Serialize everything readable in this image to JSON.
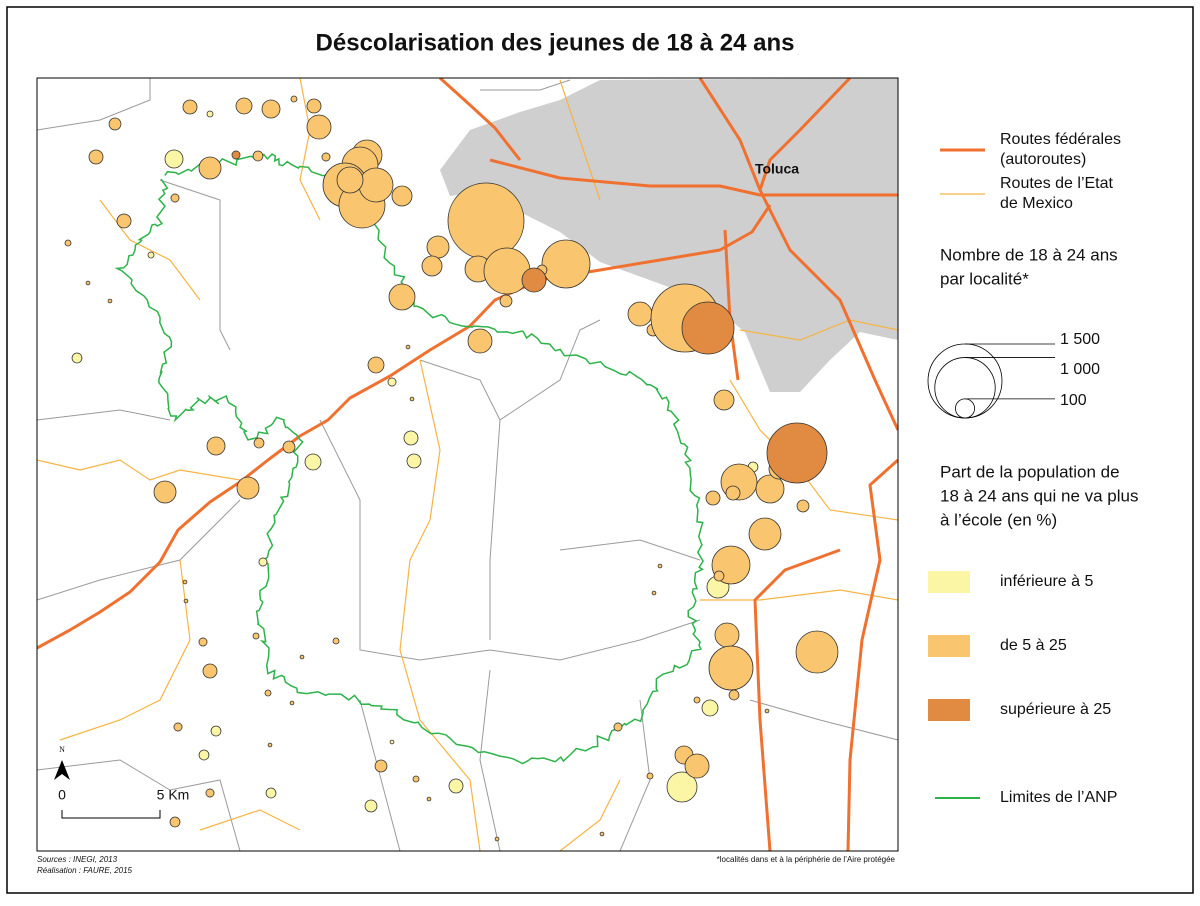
{
  "title": "Déscolarisation des jeunes de 18 à 24 ans",
  "map": {
    "place_label": "Toluca",
    "north": "N",
    "scale": {
      "start": "0",
      "end": "5 Km"
    }
  },
  "legend": {
    "roads": [
      {
        "lines": [
          "Routes fédérales",
          "(autoroutes)"
        ],
        "color": "#f07030"
      },
      {
        "lines": [
          "Routes de l’Etat",
          "de Mexico"
        ],
        "color": "#f5b443"
      }
    ],
    "size_title": [
      "Nombre de 18 à 24 ans",
      "par localité*"
    ],
    "size_ticks": [
      {
        "value": 1500,
        "label": "1 500"
      },
      {
        "value": 1000,
        "label": "1 000"
      },
      100
    ],
    "color_title": [
      "Part de la population de",
      "18 à 24 ans qui ne va plus",
      "à l’école (en %)"
    ],
    "classes": [
      {
        "label": "inférieure à 5",
        "color": "#fbf5a6",
        "populations": [
          10,
          89,
          18,
          10,
          27,
          18,
          70,
          54,
          54,
          27,
          133,
          70,
          247,
          18,
          27,
          27,
          4,
          27,
          39,
          54
        ]
      },
      {
        "label": "de 5 à 25",
        "color": "#f9c56e",
        "populations": [
          54,
          70,
          89,
          10,
          54,
          39,
          158,
          54,
          133,
          27,
          18,
          247,
          355,
          530,
          580,
          317,
          185,
          110,
          54,
          18,
          1582,
          133,
          110,
          185,
          580,
          631,
          27,
          39,
          185,
          10,
          4,
          4,
          158,
          70,
          4,
          158,
          39,
          1267,
          110,
          4,
          89,
          27,
          39,
          133,
          133,
          355,
          215,
          110,
          54,
          54,
          39,
          280,
          396,
          27,
          158,
          483,
          530,
          27,
          10,
          4,
          89,
          158,
          10,
          18,
          4,
          4,
          4,
          18,
          54,
          10,
          10,
          4,
          10,
          18,
          18,
          4,
          4,
          39,
          27,
          10,
          4,
          4,
          4,
          4
        ]
      },
      {
        "label": "supérieure à 25",
        "color": "#e08a42",
        "populations": [
          18,
          158,
          741,
          986
        ]
      }
    ],
    "boundary": {
      "label": "Limites de l’ANP",
      "color": "#2db34a"
    }
  },
  "sources": [
    "Sources : INEGI, 2013",
    "Réalisation : FAURE, 2015"
  ],
  "footnote": "*localités dans et à la périphérie de l’Aire protégée"
}
